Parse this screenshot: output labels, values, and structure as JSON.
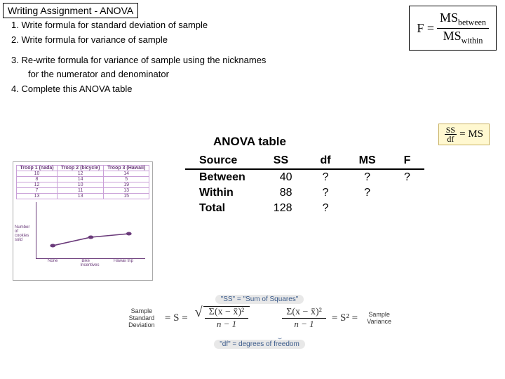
{
  "title": "Writing  Assignment - ANOVA",
  "questions": {
    "q1": "1. Write formula for standard deviation of sample",
    "q2": "2. Write formula for variance of sample",
    "q3a": "3. Re-write formula for variance of sample using the nicknames",
    "q3b": "for the numerator and denominator",
    "q4": "4. Complete this ANOVA table"
  },
  "f_formula": {
    "lhs": "F =",
    "num_base": "MS",
    "num_sub": "between",
    "den_base": "MS",
    "den_sub": "within"
  },
  "ms_note": {
    "num": "SS",
    "den": "df",
    "eq": "= MS"
  },
  "anova": {
    "heading": "ANOVA table",
    "headers": {
      "source": "Source",
      "ss": "SS",
      "df": "df",
      "ms": "MS",
      "f": "F"
    },
    "rows": [
      {
        "source": "Between",
        "ss": "40",
        "df": "?",
        "ms": "?",
        "f": "?"
      },
      {
        "source": "Within",
        "ss": "88",
        "df": "?",
        "ms": "?",
        "f": ""
      },
      {
        "source": " Total",
        "ss": "128",
        "df": "?",
        "ms": "",
        "f": ""
      }
    ]
  },
  "chart": {
    "col_headers": [
      "Troop 1 (nada)",
      "Troop 2 (bicycle)",
      "Troop 3 (Hawaii)"
    ],
    "data": [
      [
        "10",
        "12",
        "14"
      ],
      [
        "8",
        "14",
        "5"
      ],
      [
        "12",
        "10",
        "19"
      ],
      [
        "7",
        "11",
        "13"
      ],
      [
        "13",
        "13",
        "15"
      ]
    ],
    "ylabel": "Number of cookies sold",
    "xlabels": [
      "None",
      "Bike",
      "Hawaii trip"
    ],
    "xaxis": "Incentives",
    "points": [
      {
        "x": 15,
        "y": 62
      },
      {
        "x": 50,
        "y": 50
      },
      {
        "x": 85,
        "y": 45
      }
    ],
    "line_color": "#6a3a7a"
  },
  "bottom": {
    "ss_pill": "\"SS\" = \"Sum of Squares\"",
    "sd_label": "Sample Standard Deviation",
    "sv_label": "Sample Variance",
    "s_eq": "= S =",
    "s2_eq": "= S² =",
    "sigma": "Σ(x − x̄)²",
    "denom": "n − 1",
    "df_pill": "\"df\" = degrees of freedom"
  }
}
